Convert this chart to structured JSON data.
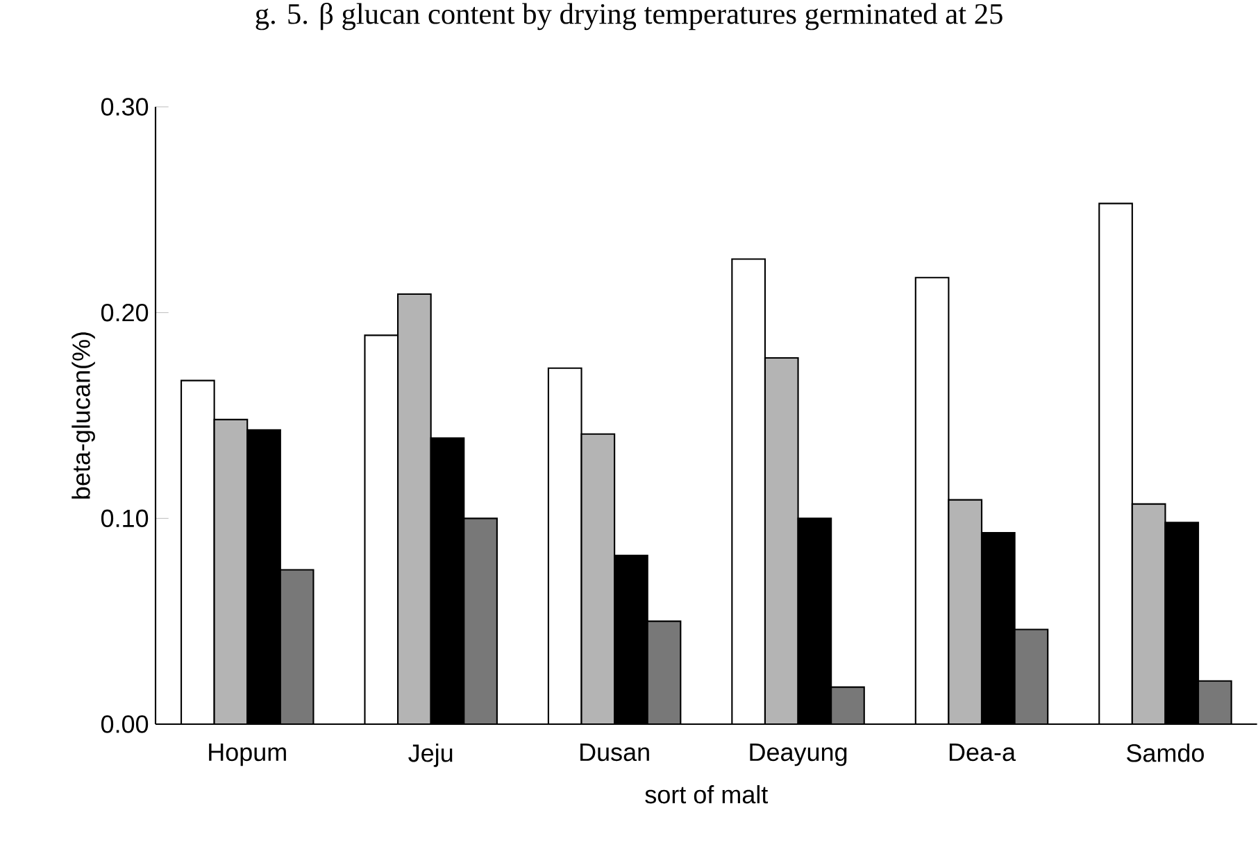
{
  "chart_data": {
    "type": "bar",
    "title": "g. 5. β glucan content by drying temperatures germinated at 25",
    "xlabel": "sort of malt",
    "ylabel": "beta-glucan(%)",
    "categories": [
      "Hopum",
      "Jeju",
      "Dusan",
      "Deayung",
      "Dea-a",
      "Samdo"
    ],
    "series": [
      {
        "color": "#ffffff",
        "values": [
          0.167,
          0.189,
          0.173,
          0.226,
          0.217,
          0.253
        ]
      },
      {
        "color": "#b4b4b4",
        "values": [
          0.148,
          0.209,
          0.141,
          0.178,
          0.109,
          0.107
        ]
      },
      {
        "color": "#000000",
        "values": [
          0.143,
          0.139,
          0.082,
          0.1,
          0.093,
          0.098
        ]
      },
      {
        "color": "#787878",
        "values": [
          0.075,
          0.1,
          0.05,
          0.018,
          0.046,
          0.021
        ]
      }
    ],
    "ylim": [
      0,
      0.3
    ],
    "yticks": [
      {
        "value": 0,
        "label": "0.00"
      },
      {
        "value": 0.1,
        "label": "0.10"
      },
      {
        "value": 0.2,
        "label": "0.20"
      },
      {
        "value": 0.3,
        "label": "0.30"
      }
    ],
    "grid": false
  }
}
